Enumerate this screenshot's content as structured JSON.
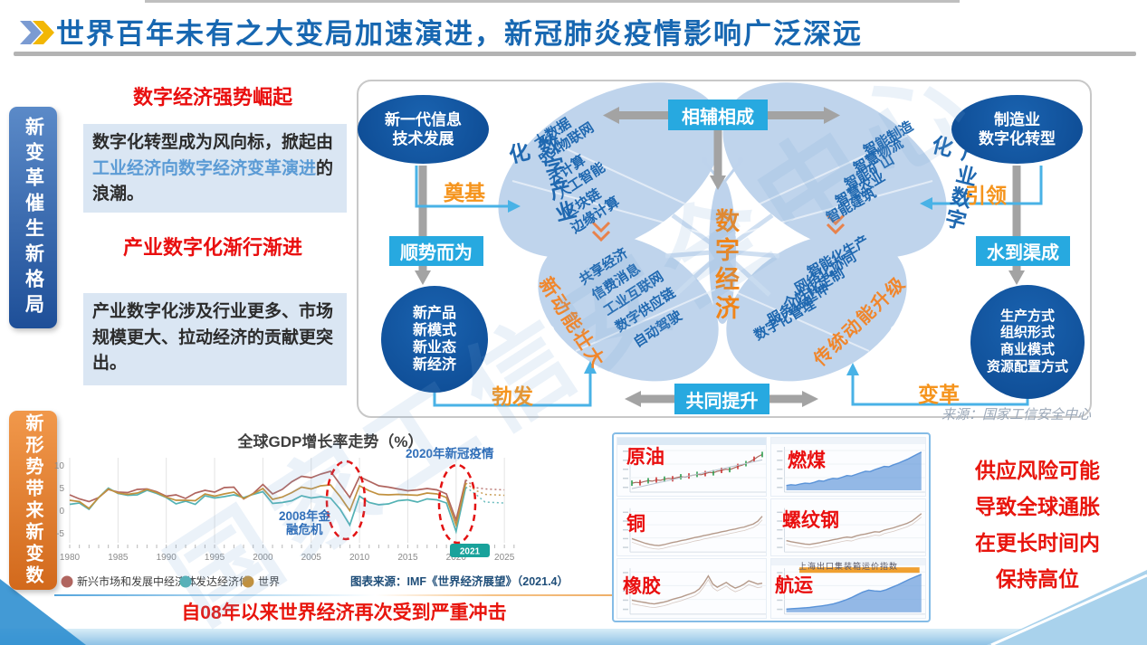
{
  "watermark": "国家工信安全中心",
  "header": {
    "title": "世界百年未有之大变局加速演进，新冠肺炎疫情影响广泛深远"
  },
  "left_panel": {
    "tab_top": "新变革催生新格局",
    "tab_bottom": "新形势带来新变数",
    "heading1": "数字经济强势崛起",
    "para1_prefix": "数字化转型成为风向标，掀起由",
    "para1_highlight": "工业经济向数字经济变革演进",
    "para1_suffix": "的浪潮。",
    "heading2": "产业数字化渐行渐进",
    "para2": "产业数字化涉及行业更多、市场规模更大、拉动经济的贡献更突出。"
  },
  "diagram": {
    "center": "数字经济",
    "top_label": "相辅相成",
    "bottom_label": "共同提升",
    "left_box": "顺势而为",
    "right_box": "水到渠成",
    "arrow_labels": {
      "foundation": "奠基",
      "lead": "引领",
      "burst": "勃发",
      "transform": "变革"
    },
    "top_left_oval": [
      "新一代信息",
      "技术发展"
    ],
    "top_right_oval": [
      "制造业",
      "数字化转型"
    ],
    "bottom_left_circle": [
      "新产品",
      "新模式",
      "新业态",
      "新经济"
    ],
    "bottom_right_circle": [
      "生产方式",
      "组织形式",
      "商业模式",
      "资源配置方式"
    ],
    "wing_tl_title": "数字产业化",
    "wing_tl_items": [
      "大数据",
      "5G/物联网",
      "云计算",
      "人工智能",
      "区块链",
      "边缘计算"
    ],
    "wing_bl_title": "新动能壮大",
    "wing_bl_items": [
      "共享经济",
      "信费消息",
      "工业互联网",
      "数字供应链",
      "自动驾驶"
    ],
    "wing_tr_title": "产业数字化",
    "wing_tr_items": [
      "智能制造",
      "智慧物流",
      "智能矿山",
      "智慧农业",
      "智能建筑"
    ],
    "wing_br_title": "传统动能升级",
    "wing_br_items": [
      "智能化生产",
      "网络化协同",
      "个性化定制",
      "服务化延伸",
      "数字化管理"
    ],
    "source": "来源：国家工信安全中心"
  },
  "chart_data": {
    "type": "line",
    "title": "全球GDP增长率走势（%）",
    "x_start": 1980,
    "x_end": 2025,
    "xticks": [
      1980,
      1985,
      1990,
      1995,
      2000,
      2005,
      2010,
      2015,
      2020,
      2025
    ],
    "yticks": [
      10,
      5,
      0,
      -5
    ],
    "ylim": [
      -6,
      11
    ],
    "grid": true,
    "legend_position": "bottom",
    "forecast_from_year": 2021,
    "series": [
      {
        "name": "新兴市场和发展中经济体",
        "color": "#b0655f",
        "values": [
          3.4,
          2.5,
          1.9,
          2.8,
          4.6,
          4.0,
          3.9,
          4.6,
          4.7,
          4.1,
          3.1,
          3.4,
          2.6,
          3.8,
          4.4,
          4.0,
          5.0,
          5.1,
          2.5,
          3.7,
          5.7,
          3.6,
          4.6,
          6.3,
          7.5,
          7.2,
          8.0,
          8.6,
          5.7,
          2.8,
          7.4,
          6.4,
          5.4,
          5.1,
          4.7,
          4.3,
          4.5,
          4.8,
          4.5,
          3.6,
          -2.2,
          6.7,
          5.0,
          4.7,
          4.6,
          4.5
        ]
      },
      {
        "name": "发达经济体",
        "color": "#53b2b4",
        "values": [
          1.3,
          1.6,
          0.2,
          2.8,
          4.9,
          3.7,
          3.3,
          3.4,
          4.4,
          3.7,
          2.8,
          1.4,
          2.0,
          1.3,
          3.2,
          2.7,
          3.0,
          3.4,
          2.8,
          3.5,
          4.1,
          1.5,
          1.7,
          2.1,
          3.2,
          2.7,
          3.0,
          2.7,
          0.2,
          -3.3,
          3.1,
          1.7,
          1.2,
          1.4,
          2.1,
          2.3,
          1.8,
          2.5,
          2.3,
          1.6,
          -4.7,
          5.1,
          3.6,
          1.8,
          1.7,
          1.6
        ]
      },
      {
        "name": "世界",
        "color": "#c1913f",
        "values": [
          2.2,
          1.9,
          0.4,
          2.8,
          4.7,
          3.8,
          3.5,
          3.8,
          4.6,
          3.9,
          2.9,
          2.2,
          2.2,
          2.1,
          3.6,
          3.1,
          3.6,
          4.0,
          2.6,
          3.6,
          4.8,
          2.4,
          2.9,
          3.9,
          5.1,
          4.7,
          5.4,
          5.6,
          3.0,
          -0.1,
          5.4,
          4.3,
          3.5,
          3.4,
          3.5,
          3.4,
          3.3,
          3.8,
          3.6,
          2.8,
          -3.3,
          6.0,
          4.4,
          3.5,
          3.4,
          3.3
        ]
      }
    ],
    "annotations": [
      {
        "text": "2008年金融危机",
        "lines": [
          "2008年金",
          "融危机"
        ]
      },
      {
        "text": "2020年新冠疫情",
        "lines": [
          "2020年新冠疫情"
        ]
      }
    ],
    "badge": "2021",
    "source": "图表来源：IMF《世界经济展望》（2021.4）"
  },
  "commodities": {
    "labels": [
      "原油",
      "燃煤",
      "铜",
      "螺纹钢",
      "橡胶",
      "航运"
    ],
    "shipping_title": "上海出口集装箱运价指数",
    "sparklines": [
      {
        "type": "candle",
        "color": "#a86a5f",
        "values": [
          18,
          20,
          19,
          22,
          24,
          23,
          26,
          25,
          28,
          30,
          29,
          32,
          34,
          33,
          36,
          38,
          40,
          39,
          42,
          45,
          44,
          48,
          50,
          53,
          52,
          56,
          60,
          63,
          67,
          72,
          78,
          85,
          90
        ]
      },
      {
        "type": "area",
        "color": "#5a93d8",
        "values": [
          12,
          14,
          13,
          16,
          18,
          17,
          20,
          24,
          23,
          27,
          30,
          29,
          33,
          37,
          36,
          40,
          44,
          48,
          47,
          52,
          56,
          60,
          59,
          64,
          68,
          73,
          78,
          84,
          90,
          96
        ]
      },
      {
        "type": "line",
        "color": "#b59a8a",
        "values": [
          30,
          26,
          22,
          18,
          15,
          13,
          12,
          14,
          17,
          20,
          22,
          25,
          27,
          30,
          33,
          35,
          38,
          40,
          43,
          45,
          48,
          50,
          53,
          55,
          58,
          60,
          64,
          68,
          75,
          88
        ]
      },
      {
        "type": "line",
        "color": "#b59a8a",
        "values": [
          25,
          22,
          20,
          18,
          16,
          15,
          17,
          19,
          22,
          24,
          27,
          29,
          32,
          34,
          33,
          37,
          40,
          42,
          45,
          48,
          47,
          52,
          55,
          58,
          62,
          66,
          70,
          76,
          85,
          95
        ]
      },
      {
        "type": "line",
        "color": "#b59a8a",
        "values": [
          30,
          28,
          26,
          24,
          22,
          21,
          23,
          25,
          28,
          32,
          35,
          38,
          42,
          46,
          50,
          58,
          72,
          90,
          70,
          62,
          68,
          74,
          66,
          60,
          64,
          70,
          78,
          74,
          70,
          72
        ]
      },
      {
        "type": "area",
        "color": "#5a93d8",
        "values": [
          8,
          9,
          10,
          11,
          12,
          14,
          16,
          18,
          21,
          25,
          30,
          36,
          43,
          50,
          55,
          53,
          52,
          56,
          62,
          68,
          75,
          82,
          88,
          94
        ]
      }
    ]
  },
  "inflation_note": [
    "供应风险可能",
    "导致全球通胀",
    "在更长时间内",
    "保持高位"
  ],
  "bottom_caption": "自08年以来世界经济再次受到严重冲击"
}
